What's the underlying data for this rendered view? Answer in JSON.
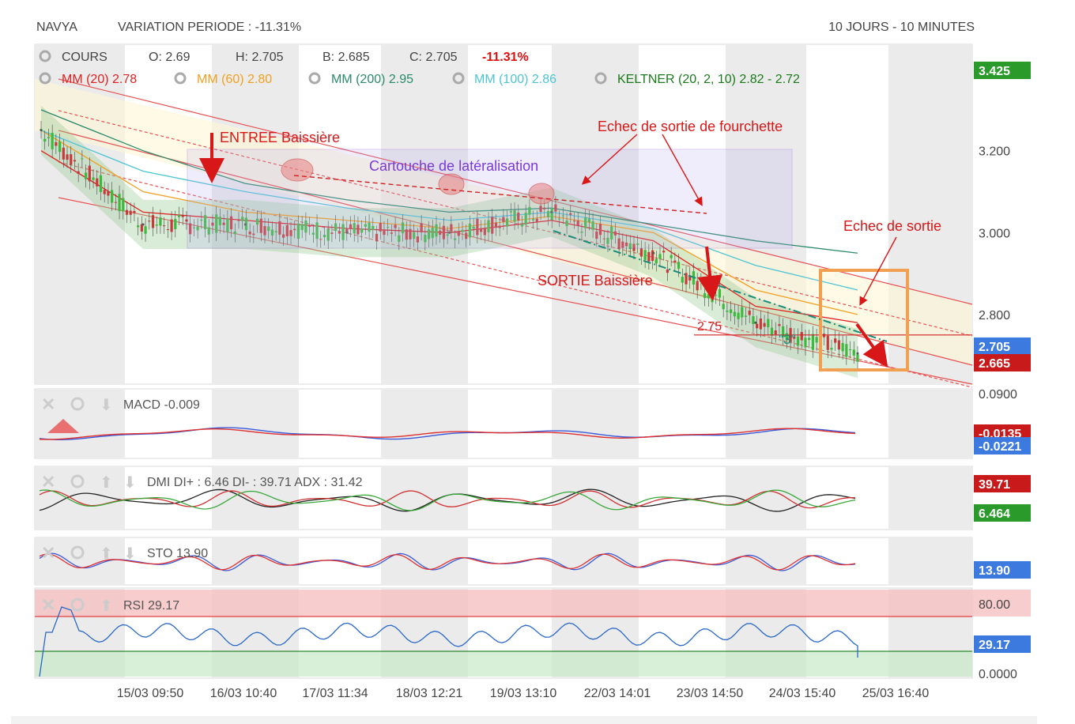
{
  "header": {
    "ticker": "NAVYA",
    "variation": "VARIATION PERIODE : -11.31%",
    "period": "10 JOURS - 10 MINUTES"
  },
  "price_panel": {
    "cours_label": "COURS",
    "open": "O: 2.69",
    "high": "H: 2.705",
    "low": "B: 2.685",
    "close": "C: 2.705",
    "change": "-11.31%",
    "indicators": [
      {
        "label": "MM (20)",
        "value": "2.78",
        "color": "#e02020"
      },
      {
        "label": "MM (60)",
        "value": "2.80",
        "color": "#f0a020"
      },
      {
        "label": "MM (200)",
        "value": "2.95",
        "color": "#2a8a6a"
      },
      {
        "label": "MM (100)",
        "value": "2.86",
        "color": "#4cc4d4"
      },
      {
        "label": "KELTNER (20, 2, 10)",
        "value": "2.82 - 2.72",
        "color": "#1a7a1a"
      }
    ],
    "axis_ticks": [
      "3.200",
      "3.000",
      "2.800"
    ],
    "badge_top": "3.425",
    "badge_last": "2.705",
    "badge_low": "2.665",
    "annotations": {
      "entree": "ENTREE Baissière",
      "cartouche": "Cartouche de latéralisation",
      "echec_fourchette": "Echec de sortie de fourchette",
      "sortie": "SORTIE Baissière",
      "echec_sortie": "Echec de sortie",
      "level": "2.75",
      "wave": "\"3\""
    }
  },
  "macd": {
    "label": "MACD",
    "value": "-0.009",
    "axis_top": "0.0900",
    "badge1": "-0.0135",
    "badge2": "-0.0221"
  },
  "dmi": {
    "label": "DMI",
    "value": "DI+ : 6.46 DI- : 39.71 ADX : 31.42",
    "badge1": "39.71",
    "badge2": "6.464"
  },
  "sto": {
    "label": "STO",
    "value": "13.90",
    "badge": "13.90"
  },
  "rsi": {
    "label": "RSI",
    "value": "29.17",
    "axis_top": "80.00",
    "axis_bottom": "0.0000",
    "badge": "29.17"
  },
  "x_axis": [
    "15/03 09:50",
    "16/03 10:40",
    "17/03 11:34",
    "18/03 12:21",
    "19/03 13:10",
    "22/03 14:01",
    "23/03 14:50",
    "24/03 15:40",
    "25/03 16:40"
  ],
  "chart_data": {
    "type": "line",
    "title": "NAVYA",
    "categories": [
      "15/03 09:50",
      "16/03 10:40",
      "17/03 11:34",
      "18/03 12:21",
      "19/03 13:10",
      "22/03 14:01",
      "23/03 14:50",
      "24/03 15:40",
      "25/03 16:40"
    ],
    "series": [
      {
        "name": "COURS",
        "values": [
          3.25,
          3.02,
          3.02,
          3.0,
          3.0,
          3.05,
          2.95,
          2.78,
          2.705
        ]
      },
      {
        "name": "MM (20)",
        "values": [
          3.2,
          3.05,
          3.03,
          3.01,
          3.0,
          3.03,
          2.98,
          2.82,
          2.78
        ]
      },
      {
        "name": "MM (60)",
        "values": [
          3.25,
          3.1,
          3.05,
          3.03,
          3.01,
          3.04,
          3.0,
          2.86,
          2.8
        ]
      },
      {
        "name": "MM (200)",
        "values": [
          3.3,
          3.2,
          3.12,
          3.08,
          3.05,
          3.06,
          3.02,
          2.98,
          2.95
        ]
      },
      {
        "name": "MM (100)",
        "values": [
          3.25,
          3.15,
          3.1,
          3.06,
          3.03,
          3.05,
          3.01,
          2.92,
          2.86
        ]
      }
    ],
    "ylim": [
      2.63,
      3.46
    ],
    "y_ticks": [
      3.2,
      3.0,
      2.8
    ],
    "level_line": 2.75,
    "grid": true
  }
}
